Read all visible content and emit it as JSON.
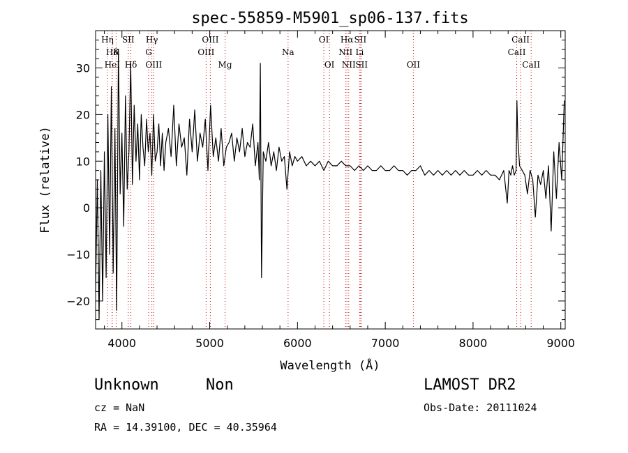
{
  "chart_data": {
    "type": "line",
    "title": "spec-55859-M5901_sp06-137.fits",
    "xlabel": "Wavelength (Å)",
    "ylabel": "Flux (relative)",
    "xlim": [
      3700,
      9050
    ],
    "ylim": [
      -26,
      38
    ],
    "xticks": [
      4000,
      5000,
      6000,
      7000,
      8000,
      9000
    ],
    "yticks": [
      -20,
      -10,
      0,
      10,
      20,
      30
    ],
    "grid": false,
    "line_color": "#000000",
    "marker_color": "#cc0000",
    "spectral_lines": [
      {
        "label": "Hη",
        "wave": 3835,
        "row": 0
      },
      {
        "label": "Hδ",
        "wave": 3889,
        "row": 1
      },
      {
        "label": "HeI",
        "wave": 3889,
        "row": 2
      },
      {
        "label": "K",
        "wave": 3934,
        "row": 1
      },
      {
        "label": "SII",
        "wave": 4072,
        "row": 0
      },
      {
        "label": "Hδ",
        "wave": 4102,
        "row": 2
      },
      {
        "label": "Hγ",
        "wave": 4341,
        "row": 0
      },
      {
        "label": "G",
        "wave": 4305,
        "row": 1
      },
      {
        "label": "OIII",
        "wave": 4363,
        "row": 2
      },
      {
        "label": "OIII",
        "wave": 5007,
        "row": 0
      },
      {
        "label": "OIII",
        "wave": 4959,
        "row": 1
      },
      {
        "label": "Mg",
        "wave": 5175,
        "row": 2
      },
      {
        "label": "Na",
        "wave": 5893,
        "row": 1
      },
      {
        "label": "OI",
        "wave": 6300,
        "row": 0
      },
      {
        "label": "OI",
        "wave": 6364,
        "row": 2
      },
      {
        "label": "Hα",
        "wave": 6563,
        "row": 0
      },
      {
        "label": "SII",
        "wave": 6716,
        "row": 0
      },
      {
        "label": "NII",
        "wave": 6548,
        "row": 1
      },
      {
        "label": "Li",
        "wave": 6708,
        "row": 1
      },
      {
        "label": "NII",
        "wave": 6584,
        "row": 2
      },
      {
        "label": "SII",
        "wave": 6731,
        "row": 2
      },
      {
        "label": "OII",
        "wave": 7320,
        "row": 2
      },
      {
        "label": "CaII",
        "wave": 8542,
        "row": 0
      },
      {
        "label": "CaII",
        "wave": 8498,
        "row": 1
      },
      {
        "label": "CaII",
        "wave": 8662,
        "row": 2
      }
    ],
    "series": [
      {
        "x": [
          3700,
          3720,
          3740,
          3760,
          3780,
          3800,
          3820,
          3840,
          3860,
          3880,
          3900,
          3920,
          3940,
          3960,
          3980,
          4000,
          4020,
          4040,
          4060,
          4080,
          4100,
          4120,
          4140,
          4160,
          4180,
          4200,
          4220,
          4240,
          4260,
          4280,
          4300,
          4320,
          4340,
          4360,
          4380,
          4400,
          4420,
          4440,
          4460,
          4480,
          4500,
          4530,
          4560,
          4590,
          4620,
          4650,
          4680,
          4710,
          4740,
          4770,
          4800,
          4830,
          4860,
          4890,
          4920,
          4950,
          4980,
          5010,
          5040,
          5070,
          5100,
          5130,
          5160,
          5190,
          5220,
          5250,
          5280,
          5310,
          5340,
          5370,
          5400,
          5430,
          5460,
          5490,
          5520,
          5550,
          5565,
          5577,
          5590,
          5610,
          5640,
          5670,
          5700,
          5730,
          5760,
          5790,
          5820,
          5850,
          5880,
          5910,
          5940,
          5970,
          6000,
          6050,
          6100,
          6150,
          6200,
          6250,
          6300,
          6350,
          6400,
          6450,
          6500,
          6550,
          6600,
          6650,
          6700,
          6750,
          6800,
          6850,
          6900,
          6950,
          7000,
          7050,
          7100,
          7150,
          7200,
          7250,
          7300,
          7350,
          7400,
          7450,
          7500,
          7550,
          7600,
          7650,
          7700,
          7750,
          7800,
          7850,
          7900,
          7950,
          8000,
          8050,
          8100,
          8150,
          8200,
          8250,
          8300,
          8350,
          8390,
          8410,
          8430,
          8450,
          8470,
          8490,
          8500,
          8510,
          8530,
          8560,
          8590,
          8620,
          8650,
          8680,
          8710,
          8740,
          8770,
          8800,
          8830,
          8860,
          8890,
          8920,
          8950,
          8980,
          9010,
          9040
        ],
        "y": [
          -18,
          6,
          -24,
          8,
          -20,
          12,
          -15,
          20,
          -10,
          26,
          -14,
          17,
          -22,
          34,
          3,
          16,
          -4,
          24,
          4,
          12,
          31,
          5,
          22,
          10,
          18,
          6,
          20,
          13,
          9,
          19,
          12,
          16,
          7,
          20,
          10,
          12,
          18,
          9,
          16,
          8,
          14,
          17,
          11,
          22,
          9,
          18,
          13,
          15,
          7,
          19,
          12,
          21,
          10,
          16,
          13,
          19,
          8,
          22,
          11,
          15,
          10,
          17,
          9,
          13,
          14,
          16,
          10,
          15,
          12,
          17,
          11,
          14,
          13,
          18,
          9,
          14,
          6,
          31,
          -15,
          12,
          10,
          14,
          9,
          12,
          8,
          13,
          10,
          11,
          4,
          12,
          9,
          11,
          10,
          11,
          9,
          10,
          9,
          10,
          8,
          10,
          9,
          9,
          10,
          9,
          9,
          8,
          9,
          8,
          9,
          8,
          8,
          9,
          8,
          8,
          9,
          8,
          8,
          7,
          8,
          8,
          9,
          7,
          8,
          7,
          8,
          7,
          8,
          7,
          8,
          7,
          8,
          7,
          7,
          8,
          7,
          8,
          7,
          7,
          6,
          8,
          1,
          8,
          7,
          9,
          7,
          8,
          23,
          15,
          9,
          8,
          7,
          3,
          8,
          6,
          -2,
          7,
          5,
          8,
          2,
          9,
          -5,
          12,
          2,
          14,
          6,
          23
        ]
      }
    ]
  },
  "info": {
    "object_class": "Unknown",
    "subclass": "Non",
    "cz": "cz = NaN",
    "radec": "RA =  14.39100, DEC =  40.35964",
    "survey": "LAMOST DR2",
    "obs_date": "Obs-Date: 20111024"
  }
}
